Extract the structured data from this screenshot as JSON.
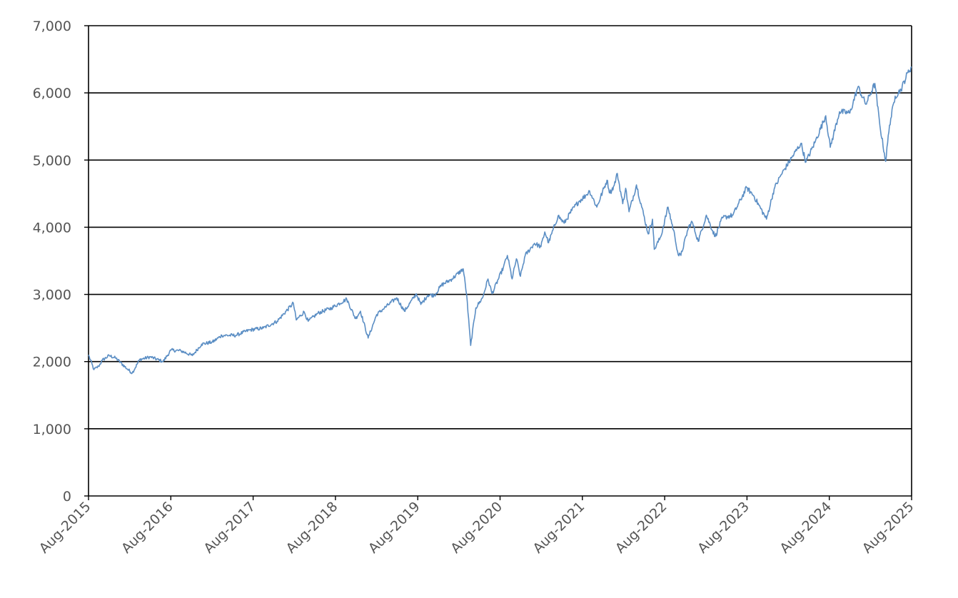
{
  "chart_data": {
    "type": "line",
    "title": "",
    "xlabel": "",
    "ylabel": "",
    "ylim": [
      0,
      7000
    ],
    "xlim": [
      "2015-08",
      "2025-08"
    ],
    "grid": "horizontal",
    "legend": "none",
    "y_ticks": [
      "0",
      "1,000",
      "2,000",
      "3,000",
      "4,000",
      "5,000",
      "6,000",
      "7,000"
    ],
    "x_ticks": [
      "Aug-2015",
      "Aug-2016",
      "Aug-2017",
      "Aug-2018",
      "Aug-2019",
      "Aug-2020",
      "Aug-2021",
      "Aug-2022",
      "Aug-2023",
      "Aug-2024",
      "Aug-2025"
    ],
    "line_color": "#5b8ec4",
    "series": [
      {
        "x": [
          "2015-08-01",
          "2015-08-25",
          "2015-09-15",
          "2015-10-01",
          "2015-11-01",
          "2015-12-01",
          "2016-01-20",
          "2016-02-11",
          "2016-03-15",
          "2016-05-01",
          "2016-06-27",
          "2016-08-01",
          "2016-09-15",
          "2016-11-04",
          "2016-12-15",
          "2017-02-01",
          "2017-03-15",
          "2017-05-15",
          "2017-07-15",
          "2017-09-15",
          "2017-11-15",
          "2018-01-26",
          "2018-02-08",
          "2018-03-15",
          "2018-04-02",
          "2018-05-15",
          "2018-07-15",
          "2018-09-20",
          "2018-10-29",
          "2018-11-20",
          "2018-12-24",
          "2019-01-31",
          "2019-02-28",
          "2019-04-30",
          "2019-06-03",
          "2019-07-26",
          "2019-08-15",
          "2019-09-15",
          "2019-10-15",
          "2019-11-15",
          "2019-12-31",
          "2020-02-19",
          "2020-03-05",
          "2020-03-23",
          "2020-04-15",
          "2020-05-15",
          "2020-06-08",
          "2020-06-26",
          "2020-08-15",
          "2020-09-02",
          "2020-09-23",
          "2020-10-12",
          "2020-10-30",
          "2020-11-20",
          "2020-12-31",
          "2021-01-29",
          "2021-02-15",
          "2021-03-04",
          "2021-04-15",
          "2021-05-12",
          "2021-06-15",
          "2021-07-15",
          "2021-08-15",
          "2021-09-02",
          "2021-10-04",
          "2021-11-18",
          "2021-12-01",
          "2021-12-20",
          "2022-01-03",
          "2022-01-27",
          "2022-02-09",
          "2022-02-24",
          "2022-03-29",
          "2022-05-20",
          "2022-06-08",
          "2022-06-16",
          "2022-07-15",
          "2022-08-16",
          "2022-09-15",
          "2022-09-30",
          "2022-10-12",
          "2022-11-15",
          "2022-12-01",
          "2022-12-28",
          "2023-02-02",
          "2023-03-13",
          "2023-04-15",
          "2023-05-31",
          "2023-07-31",
          "2023-08-31",
          "2023-10-27",
          "2023-11-30",
          "2023-12-29",
          "2024-02-15",
          "2024-03-28",
          "2024-04-19",
          "2024-05-31",
          "2024-07-16",
          "2024-08-05",
          "2024-09-15",
          "2024-10-31",
          "2024-12-06",
          "2025-01-10",
          "2025-02-19",
          "2025-03-13",
          "2025-04-08",
          "2025-04-25",
          "2025-05-20",
          "2025-06-15",
          "2025-07-15",
          "2025-08-01"
        ],
        "values": [
          2100,
          1880,
          1930,
          2020,
          2090,
          2050,
          1890,
          1830,
          2030,
          2070,
          2000,
          2170,
          2160,
          2090,
          2260,
          2290,
          2390,
          2390,
          2470,
          2500,
          2600,
          2870,
          2620,
          2740,
          2600,
          2720,
          2800,
          2930,
          2640,
          2750,
          2350,
          2700,
          2780,
          2950,
          2750,
          3010,
          2850,
          2990,
          2990,
          3140,
          3230,
          3380,
          3000,
          2240,
          2800,
          2950,
          3230,
          3010,
          3400,
          3580,
          3230,
          3530,
          3270,
          3580,
          3760,
          3710,
          3930,
          3770,
          4170,
          4060,
          4250,
          4380,
          4470,
          4540,
          4300,
          4700,
          4510,
          4620,
          4800,
          4350,
          4580,
          4230,
          4630,
          3900,
          4120,
          3670,
          3860,
          4300,
          3870,
          3590,
          3580,
          4000,
          4080,
          3790,
          4180,
          3860,
          4140,
          4180,
          4590,
          4470,
          4120,
          4570,
          4770,
          5030,
          5250,
          4970,
          5280,
          5660,
          5190,
          5720,
          5700,
          6090,
          5830,
          6140,
          5520,
          4980,
          5520,
          5950,
          6050,
          6300,
          6390
        ]
      }
    ]
  }
}
